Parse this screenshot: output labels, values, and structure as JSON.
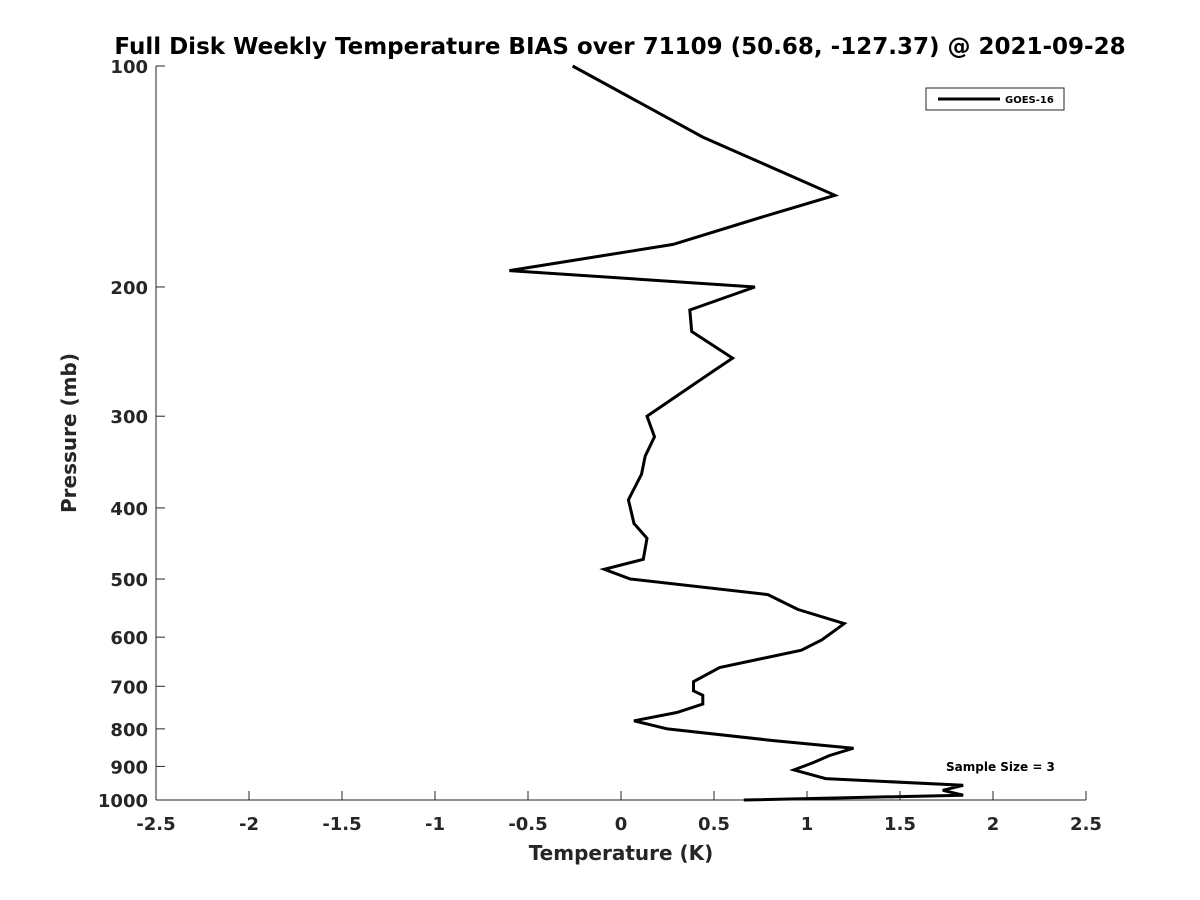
{
  "chart_data": {
    "type": "line",
    "title": "Full Disk Weekly Temperature BIAS over 71109 (50.68, -127.37) @ 2021-09-28",
    "xlabel": "Temperature (K)",
    "ylabel": "Pressure (mb)",
    "xlim": [
      -2.5,
      2.5
    ],
    "ylim": [
      100,
      1000
    ],
    "y_scale": "log",
    "y_reversed": true,
    "grid": false,
    "legend_position": "top-right",
    "x_ticks": [
      {
        "value": -2.5,
        "label": "-2.5"
      },
      {
        "value": -2,
        "label": "-2"
      },
      {
        "value": -1.5,
        "label": "-1.5"
      },
      {
        "value": -1,
        "label": "-1"
      },
      {
        "value": -0.5,
        "label": "-0.5"
      },
      {
        "value": 0,
        "label": "0"
      },
      {
        "value": 0.5,
        "label": "0.5"
      },
      {
        "value": 1,
        "label": "1"
      },
      {
        "value": 1.5,
        "label": "1.5"
      },
      {
        "value": 2,
        "label": "2"
      },
      {
        "value": 2.5,
        "label": "2.5"
      }
    ],
    "y_ticks": [
      {
        "value": 100,
        "label": "100"
      },
      {
        "value": 200,
        "label": "200"
      },
      {
        "value": 300,
        "label": "300"
      },
      {
        "value": 400,
        "label": "400"
      },
      {
        "value": 500,
        "label": "500"
      },
      {
        "value": 600,
        "label": "600"
      },
      {
        "value": 700,
        "label": "700"
      },
      {
        "value": 800,
        "label": "800"
      },
      {
        "value": 900,
        "label": "900"
      },
      {
        "value": 1000,
        "label": "1000"
      }
    ],
    "annotation": "Sample Size = 3",
    "series": [
      {
        "name": "GOES-16",
        "color": "#000000",
        "points": [
          {
            "x": -0.26,
            "y": 100
          },
          {
            "x": 0.44,
            "y": 125
          },
          {
            "x": 1.15,
            "y": 150
          },
          {
            "x": 0.78,
            "y": 160
          },
          {
            "x": 0.28,
            "y": 175
          },
          {
            "x": -0.6,
            "y": 190
          },
          {
            "x": 0.72,
            "y": 200
          },
          {
            "x": 0.37,
            "y": 215
          },
          {
            "x": 0.38,
            "y": 230
          },
          {
            "x": 0.6,
            "y": 250
          },
          {
            "x": 0.5,
            "y": 260
          },
          {
            "x": 0.14,
            "y": 300
          },
          {
            "x": 0.18,
            "y": 320
          },
          {
            "x": 0.13,
            "y": 340
          },
          {
            "x": 0.11,
            "y": 360
          },
          {
            "x": 0.04,
            "y": 390
          },
          {
            "x": 0.07,
            "y": 420
          },
          {
            "x": 0.14,
            "y": 440
          },
          {
            "x": 0.12,
            "y": 470
          },
          {
            "x": -0.09,
            "y": 485
          },
          {
            "x": 0.05,
            "y": 500
          },
          {
            "x": 0.79,
            "y": 525
          },
          {
            "x": 0.95,
            "y": 550
          },
          {
            "x": 1.2,
            "y": 575
          },
          {
            "x": 1.14,
            "y": 590
          },
          {
            "x": 1.08,
            "y": 605
          },
          {
            "x": 0.97,
            "y": 625
          },
          {
            "x": 0.53,
            "y": 660
          },
          {
            "x": 0.39,
            "y": 690
          },
          {
            "x": 0.39,
            "y": 710
          },
          {
            "x": 0.44,
            "y": 720
          },
          {
            "x": 0.44,
            "y": 740
          },
          {
            "x": 0.3,
            "y": 760
          },
          {
            "x": 0.07,
            "y": 780
          },
          {
            "x": 0.25,
            "y": 800
          },
          {
            "x": 0.82,
            "y": 830
          },
          {
            "x": 1.25,
            "y": 850
          },
          {
            "x": 1.12,
            "y": 870
          },
          {
            "x": 1.03,
            "y": 890
          },
          {
            "x": 0.93,
            "y": 910
          },
          {
            "x": 1.1,
            "y": 935
          },
          {
            "x": 1.84,
            "y": 955
          },
          {
            "x": 1.73,
            "y": 970
          },
          {
            "x": 1.84,
            "y": 985
          },
          {
            "x": 0.66,
            "y": 1000
          }
        ]
      }
    ]
  }
}
